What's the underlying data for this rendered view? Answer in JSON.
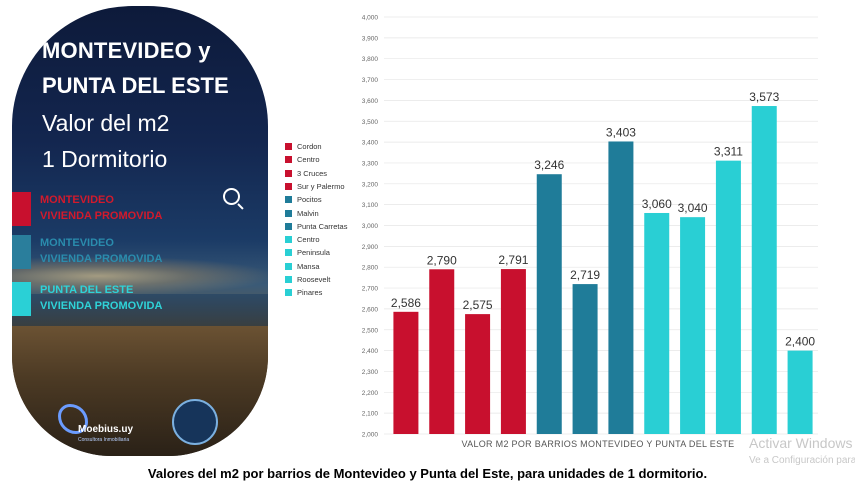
{
  "poster": {
    "title_line1": "MONTEVIDEO y",
    "title_line2": "PUNTA DEL ESTE",
    "subtitle_line1": "Valor del m2",
    "subtitle_line2": "1 Dormitorio",
    "categories": [
      {
        "line1": "MONTEVIDEO",
        "line2": "VIVIENDA PROMOVIDA",
        "color": "#c8102e",
        "text_color": "#d21a2c"
      },
      {
        "line1": "MONTEVIDEO",
        "line2": "VIVIENDA PROMOVIDA",
        "color": "#2a7e9c",
        "text_color": "#2a8cad"
      },
      {
        "line1": "PUNTA DEL ESTE",
        "line2": "VIVIENDA PROMOVIDA",
        "color": "#2ad0d6",
        "text_color": "#2fd3d8"
      }
    ],
    "logo_name": "Moebius.uy",
    "logo_tagline": "Consultora Inmobiliaria"
  },
  "colors": {
    "montevideo_red": "#c8102e",
    "montevideo_blue": "#1f7c99",
    "punta_del_este_cyan": "#29cfd4",
    "gridline": "#e6e6e6",
    "axis_text": "#666666"
  },
  "chart_data": {
    "type": "bar",
    "title": "",
    "xlabel": "VALOR M2 POR BARRIOS MONTEVIDEO Y PUNTA DEL ESTE",
    "ylabel": "",
    "ylim": [
      2000,
      4000
    ],
    "yticks": [
      "2,000",
      "2,100",
      "2,200",
      "2,300",
      "2,400",
      "2,500",
      "2,600",
      "2,700",
      "2,800",
      "2,900",
      "3,000",
      "3,100",
      "3,200",
      "3,300",
      "3,400",
      "3,500",
      "3,600",
      "3,700",
      "3,800",
      "3,900",
      "4,000"
    ],
    "ytick_values": [
      2000,
      2100,
      2200,
      2300,
      2400,
      2500,
      2600,
      2700,
      2800,
      2900,
      3000,
      3100,
      3200,
      3300,
      3400,
      3500,
      3600,
      3700,
      3800,
      3900,
      4000
    ],
    "grid": true,
    "legend_position": "left",
    "categories": [
      "Cordon",
      "Centro",
      "3 Cruces",
      "Sur y Palermo",
      "Pocitos",
      "Malvin",
      "Punta Carretas",
      "Centro",
      "Peninsula",
      "Mansa",
      "Roosevelt",
      "Pinares"
    ],
    "values": [
      2586,
      2790,
      2575,
      2791,
      3246,
      2719,
      3403,
      3060,
      3040,
      3311,
      3573,
      2400
    ],
    "value_labels": [
      "2,586",
      "2,790",
      "2,575",
      "2,791",
      "3,246",
      "2,719",
      "3,403",
      "3,060",
      "3,040",
      "3,311",
      "3,573",
      "2,400"
    ],
    "bar_colors": [
      "#c8102e",
      "#c8102e",
      "#c8102e",
      "#c8102e",
      "#1f7c99",
      "#1f7c99",
      "#1f7c99",
      "#29cfd4",
      "#29cfd4",
      "#29cfd4",
      "#29cfd4",
      "#29cfd4"
    ]
  },
  "caption": "Valores del m2 por barrios de Montevideo y Punta del Este, para unidades de 1 dormitorio.",
  "watermark": {
    "line1": "Activar Windows",
    "line2": "Ve a Configuración para activar Windows."
  }
}
